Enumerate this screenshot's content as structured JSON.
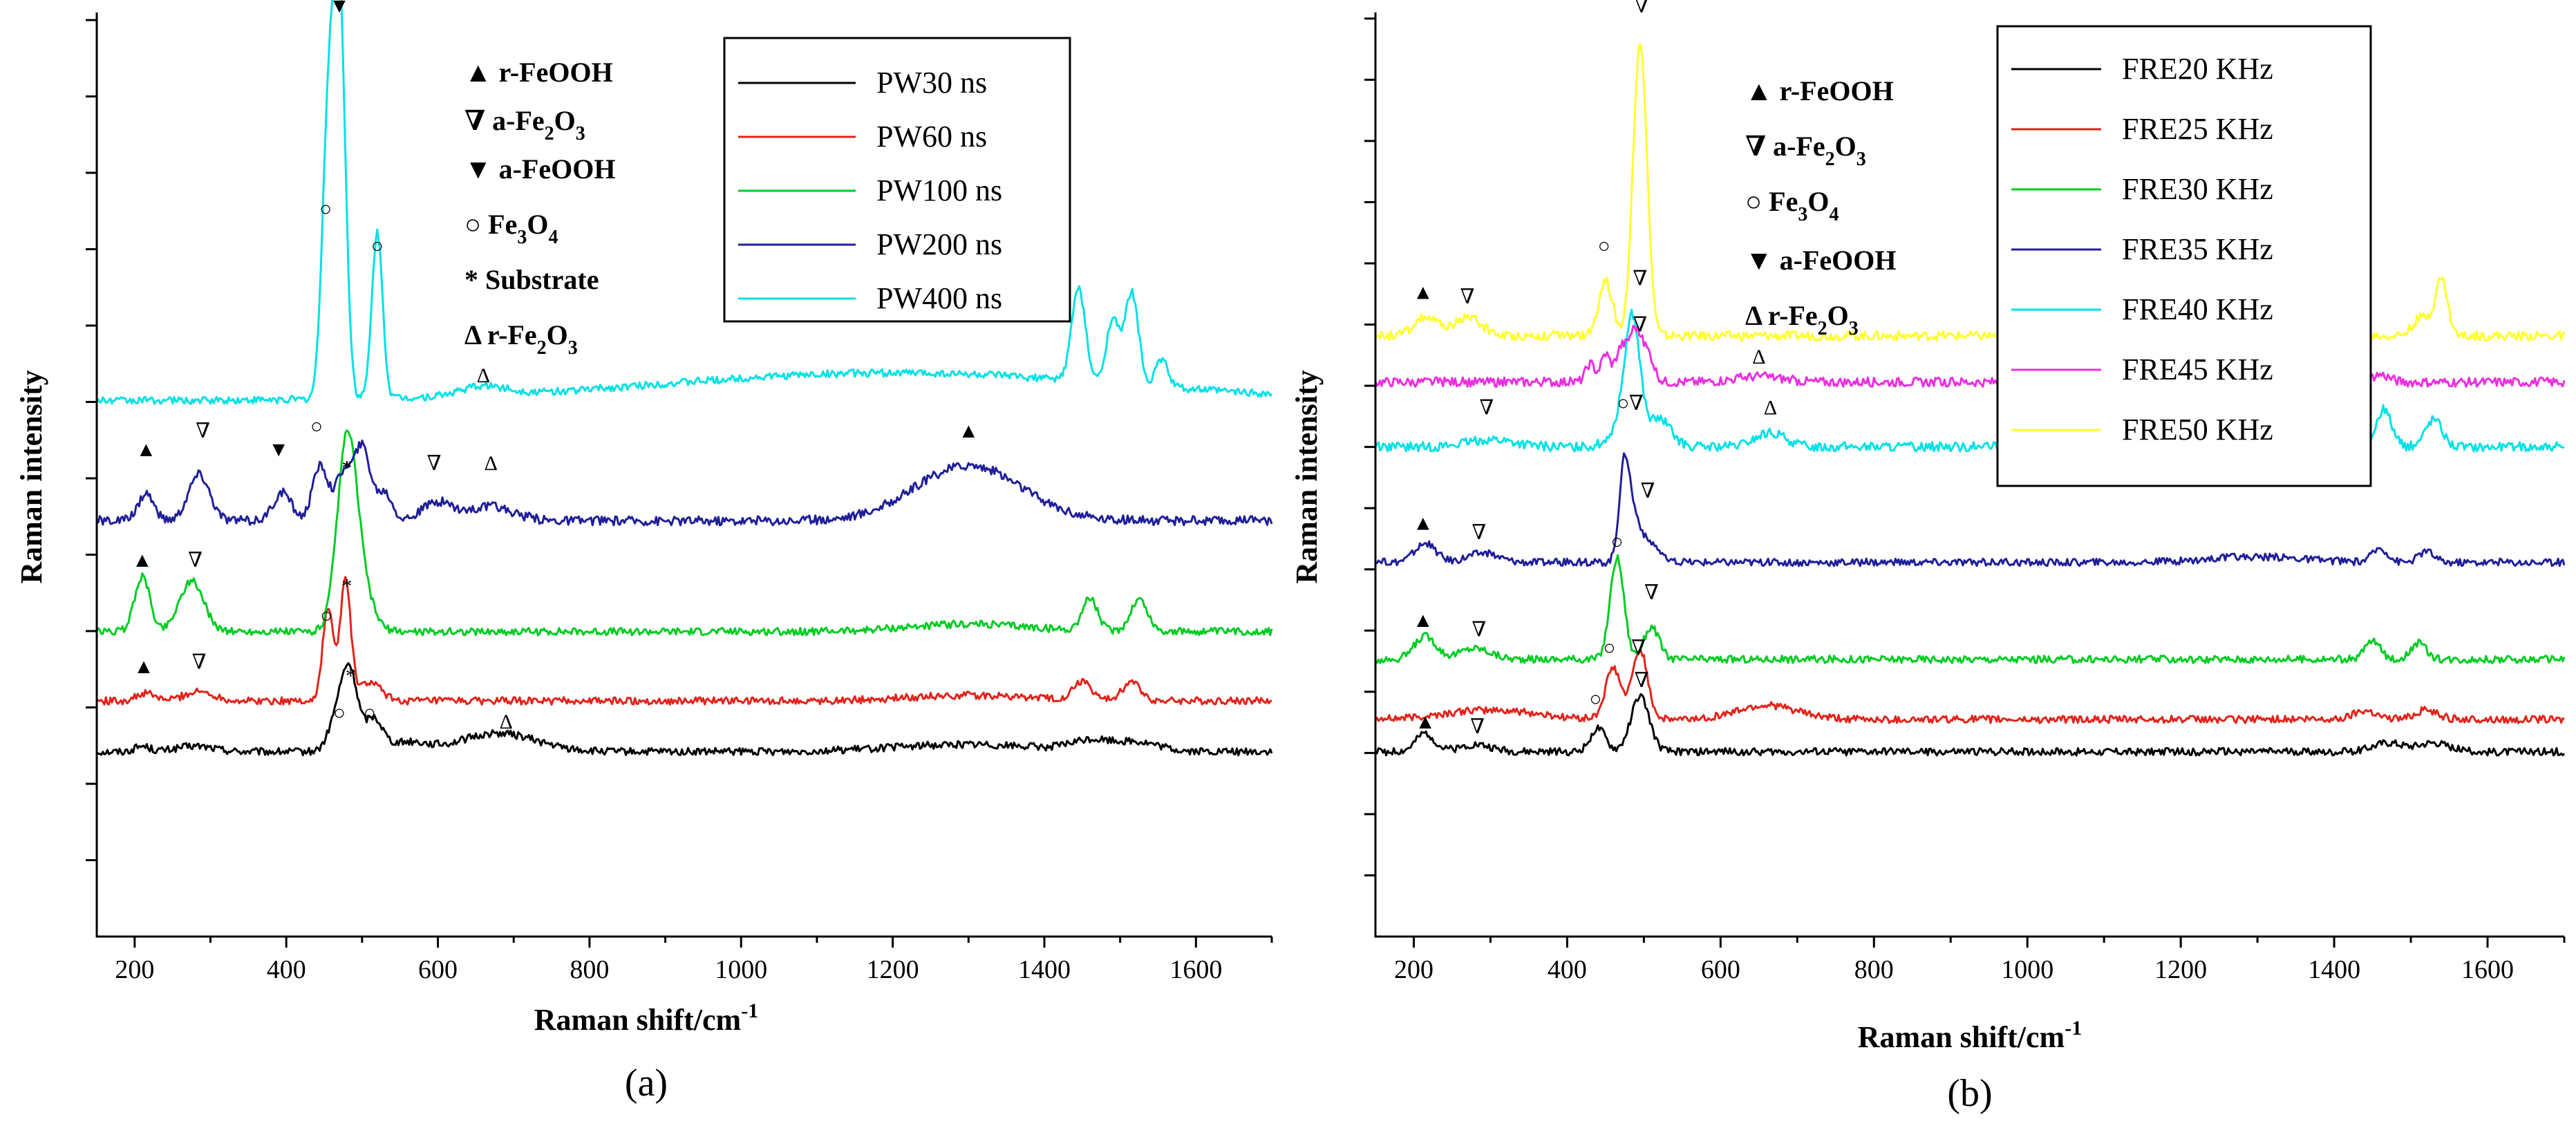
{
  "chart_data": [
    {
      "type": "line",
      "panel_label": "(a)",
      "xlabel": "Raman shift/cm",
      "xlabel_sup": "-1",
      "ylabel": "Raman intensity",
      "xlim": [
        150,
        1700
      ],
      "xticks": [
        200,
        400,
        600,
        800,
        1000,
        1200,
        1400,
        1600
      ],
      "yticks_count": 12,
      "grid": false,
      "legend_position": "top-right",
      "series": [
        {
          "name": "PW30 ns",
          "color": "#000000",
          "baseline": 0.2,
          "noise": 0.004,
          "peaks": [
            [
              210,
              0.006,
              10
            ],
            [
              280,
              0.006,
              25
            ],
            [
              470,
              0.045,
              12
            ],
            [
              485,
              0.07,
              10
            ],
            [
              515,
              0.035,
              12
            ],
            [
              560,
              0.01,
              25
            ],
            [
              680,
              0.02,
              50
            ],
            [
              1300,
              0.008,
              100
            ],
            [
              1460,
              0.01,
              25
            ],
            [
              1520,
              0.01,
              30
            ]
          ]
        },
        {
          "name": "PW60 ns",
          "color": "#e2231a",
          "baseline": 0.255,
          "noise": 0.004,
          "peaks": [
            [
              215,
              0.008,
              12
            ],
            [
              285,
              0.01,
              20
            ],
            [
              455,
              0.1,
              7
            ],
            [
              478,
              0.13,
              7
            ],
            [
              510,
              0.02,
              15
            ],
            [
              1300,
              0.006,
              80
            ],
            [
              1450,
              0.02,
              12
            ],
            [
              1515,
              0.02,
              12
            ]
          ]
        },
        {
          "name": "PW100 ns",
          "color": "#00cc22",
          "baseline": 0.33,
          "noise": 0.004,
          "peaks": [
            [
              210,
              0.06,
              10
            ],
            [
              275,
              0.055,
              16
            ],
            [
              480,
              0.2,
              13
            ],
            [
              500,
              0.04,
              15
            ],
            [
              1300,
              0.008,
              80
            ],
            [
              1460,
              0.035,
              10
            ],
            [
              1525,
              0.035,
              11
            ]
          ]
        },
        {
          "name": "PW200 ns",
          "color": "#1f1f9a",
          "baseline": 0.45,
          "noise": 0.005,
          "peaks": [
            [
              215,
              0.03,
              10
            ],
            [
              285,
              0.05,
              14
            ],
            [
              395,
              0.03,
              12
            ],
            [
              445,
              0.06,
              10
            ],
            [
              475,
              0.05,
              10
            ],
            [
              500,
              0.08,
              11
            ],
            [
              530,
              0.03,
              10
            ],
            [
              600,
              0.02,
              20
            ],
            [
              670,
              0.015,
              30
            ],
            [
              1300,
              0.06,
              70
            ]
          ]
        },
        {
          "name": "PW400 ns",
          "color": "#00e1e6",
          "baseline": 0.58,
          "noise": 0.004,
          "peaks": [
            [
              455,
              0.28,
              8
            ],
            [
              470,
              0.43,
              8
            ],
            [
              520,
              0.18,
              7
            ],
            [
              660,
              0.01,
              30
            ],
            [
              1200,
              0.03,
              300
            ],
            [
              1445,
              0.1,
              9
            ],
            [
              1490,
              0.07,
              8
            ],
            [
              1515,
              0.1,
              9
            ],
            [
              1555,
              0.03,
              8
            ]
          ]
        }
      ],
      "legend_text": {
        "a1": "▲ r-FeOOH",
        "a2": "∇ a-Fe",
        "a2s": "2",
        "a2b": "O",
        "a2s2": "3",
        "a3": "▼ a-FeOOH",
        "a4": "○ Fe",
        "a4s": "3",
        "a4b": "O",
        "a4s2": "4",
        "a5": "* Substrate",
        "a6": "Δ r-Fe",
        "a6s": "2",
        "a6b": "O",
        "a6s2": "3"
      },
      "annotations": [
        {
          "sym": "▼",
          "x": 470,
          "y": 1.0
        },
        {
          "sym": "○",
          "x": 452,
          "y": 0.78
        },
        {
          "sym": "○",
          "x": 520,
          "y": 0.74
        },
        {
          "sym": "Δ",
          "x": 660,
          "y": 0.6
        },
        {
          "sym": "▲",
          "x": 215,
          "y": 0.52
        },
        {
          "sym": "∇",
          "x": 290,
          "y": 0.54
        },
        {
          "sym": "▼",
          "x": 390,
          "y": 0.52
        },
        {
          "sym": "○",
          "x": 440,
          "y": 0.545
        },
        {
          "sym": "∇",
          "x": 595,
          "y": 0.505
        },
        {
          "sym": "Δ",
          "x": 670,
          "y": 0.505
        },
        {
          "sym": "▲",
          "x": 1300,
          "y": 0.54
        },
        {
          "sym": "*",
          "x": 480,
          "y": 0.5
        },
        {
          "sym": "▲",
          "x": 210,
          "y": 0.4
        },
        {
          "sym": "∇",
          "x": 280,
          "y": 0.4
        },
        {
          "sym": "*",
          "x": 480,
          "y": 0.372
        },
        {
          "sym": "○",
          "x": 453,
          "y": 0.34
        },
        {
          "sym": "▲",
          "x": 212,
          "y": 0.285
        },
        {
          "sym": "∇",
          "x": 285,
          "y": 0.29
        },
        {
          "sym": "*",
          "x": 485,
          "y": 0.275
        },
        {
          "sym": "○",
          "x": 470,
          "y": 0.235
        },
        {
          "sym": "○",
          "x": 510,
          "y": 0.235
        },
        {
          "sym": "Δ",
          "x": 690,
          "y": 0.225
        }
      ]
    },
    {
      "type": "line",
      "panel_label": "(b)",
      "xlabel": "Raman shift/cm",
      "xlabel_sup": "-1",
      "ylabel": "Raman intensity",
      "xlim": [
        150,
        1700
      ],
      "xticks": [
        200,
        400,
        600,
        800,
        1000,
        1200,
        1400,
        1600
      ],
      "yticks_count": 15,
      "grid": false,
      "legend_position": "top-right",
      "series": [
        {
          "name": "FRE20 KHz",
          "color": "#000000",
          "baseline": 0.2,
          "noise": 0.004,
          "peaks": [
            [
              215,
              0.02,
              12
            ],
            [
              280,
              0.008,
              20
            ],
            [
              440,
              0.025,
              10
            ],
            [
              495,
              0.06,
              12
            ],
            [
              1470,
              0.01,
              20
            ],
            [
              1530,
              0.01,
              20
            ]
          ]
        },
        {
          "name": "FRE25 KHz",
          "color": "#e2231a",
          "baseline": 0.235,
          "noise": 0.004,
          "peaks": [
            [
              300,
              0.01,
              60
            ],
            [
              460,
              0.055,
              10
            ],
            [
              495,
              0.075,
              10
            ],
            [
              660,
              0.015,
              40
            ],
            [
              1440,
              0.01,
              15
            ],
            [
              1520,
              0.01,
              15
            ]
          ]
        },
        {
          "name": "FRE30 KHz",
          "color": "#00cc22",
          "baseline": 0.3,
          "noise": 0.004,
          "peaks": [
            [
              215,
              0.025,
              14
            ],
            [
              280,
              0.012,
              20
            ],
            [
              465,
              0.11,
              9
            ],
            [
              510,
              0.035,
              10
            ],
            [
              1450,
              0.02,
              10
            ],
            [
              1510,
              0.018,
              10
            ]
          ]
        },
        {
          "name": "FRE35 KHz",
          "color": "#1f1f9a",
          "baseline": 0.405,
          "noise": 0.004,
          "peaks": [
            [
              215,
              0.02,
              14
            ],
            [
              290,
              0.01,
              20
            ],
            [
              475,
              0.11,
              7
            ],
            [
              490,
              0.04,
              8
            ],
            [
              510,
              0.02,
              10
            ],
            [
              1300,
              0.006,
              60
            ],
            [
              1460,
              0.015,
              10
            ],
            [
              1520,
              0.012,
              10
            ]
          ]
        },
        {
          "name": "FRE40 KHz",
          "color": "#00e1e6",
          "baseline": 0.53,
          "noise": 0.005,
          "peaks": [
            [
              300,
              0.008,
              30
            ],
            [
              470,
              0.02,
              15
            ],
            [
              485,
              0.13,
              10
            ],
            [
              520,
              0.03,
              15
            ],
            [
              665,
              0.015,
              20
            ],
            [
              1300,
              0.015,
              60
            ],
            [
              1465,
              0.04,
              10
            ],
            [
              1530,
              0.03,
              11
            ]
          ]
        },
        {
          "name": "FRE45 KHz",
          "color": "#ea2fe0",
          "baseline": 0.6,
          "noise": 0.005,
          "peaks": [
            [
              430,
              0.02,
              6
            ],
            [
              450,
              0.03,
              6
            ],
            [
              470,
              0.035,
              7
            ],
            [
              488,
              0.055,
              8
            ],
            [
              505,
              0.03,
              8
            ],
            [
              650,
              0.006,
              30
            ],
            [
              1460,
              0.008,
              12
            ]
          ]
        },
        {
          "name": "FRE50 KHz",
          "color": "#ffff2e",
          "baseline": 0.65,
          "noise": 0.005,
          "peaks": [
            [
              215,
              0.02,
              15
            ],
            [
              270,
              0.02,
              18
            ],
            [
              450,
              0.06,
              9
            ],
            [
              495,
              0.32,
              9
            ],
            [
              1515,
              0.02,
              12
            ],
            [
              1540,
              0.06,
              8
            ]
          ]
        }
      ],
      "legend_text": {
        "b1": "▲ r-FeOOH",
        "b2": "∇ a-Fe",
        "b2s": "2",
        "b2b": "O",
        "b2s2": "3",
        "b3": "○ Fe",
        "b3s": "3",
        "b3b": "O",
        "b3s2": "4",
        "b4": "▼ a-FeOOH",
        "b5": "Δ r-Fe",
        "b5s": "2",
        "b5b": "O",
        "b5s2": "3"
      },
      "annotations": [
        {
          "sym": "∇",
          "x": 497,
          "y": 1.0
        },
        {
          "sym": "○",
          "x": 448,
          "y": 0.74
        },
        {
          "sym": "▲",
          "x": 212,
          "y": 0.69
        },
        {
          "sym": "∇",
          "x": 270,
          "y": 0.685
        },
        {
          "sym": "∇",
          "x": 495,
          "y": 0.705
        },
        {
          "sym": "∇",
          "x": 495,
          "y": 0.655
        },
        {
          "sym": "Δ",
          "x": 650,
          "y": 0.62
        },
        {
          "sym": "∇",
          "x": 295,
          "y": 0.565
        },
        {
          "sym": "Δ",
          "x": 665,
          "y": 0.565
        },
        {
          "sym": "○",
          "x": 473,
          "y": 0.57
        },
        {
          "sym": "∇",
          "x": 490,
          "y": 0.57
        },
        {
          "sym": "▲",
          "x": 212,
          "y": 0.44
        },
        {
          "sym": "∇",
          "x": 285,
          "y": 0.43
        },
        {
          "sym": "∇",
          "x": 505,
          "y": 0.475
        },
        {
          "sym": "○",
          "x": 465,
          "y": 0.42
        },
        {
          "sym": "▲",
          "x": 212,
          "y": 0.335
        },
        {
          "sym": "∇",
          "x": 285,
          "y": 0.325
        },
        {
          "sym": "∇",
          "x": 510,
          "y": 0.365
        },
        {
          "sym": "○",
          "x": 455,
          "y": 0.305
        },
        {
          "sym": "∇",
          "x": 493,
          "y": 0.305
        },
        {
          "sym": "∇",
          "x": 497,
          "y": 0.27
        },
        {
          "sym": "○",
          "x": 437,
          "y": 0.25
        },
        {
          "sym": "▲",
          "x": 215,
          "y": 0.225
        },
        {
          "sym": "∇",
          "x": 283,
          "y": 0.22
        }
      ]
    }
  ]
}
